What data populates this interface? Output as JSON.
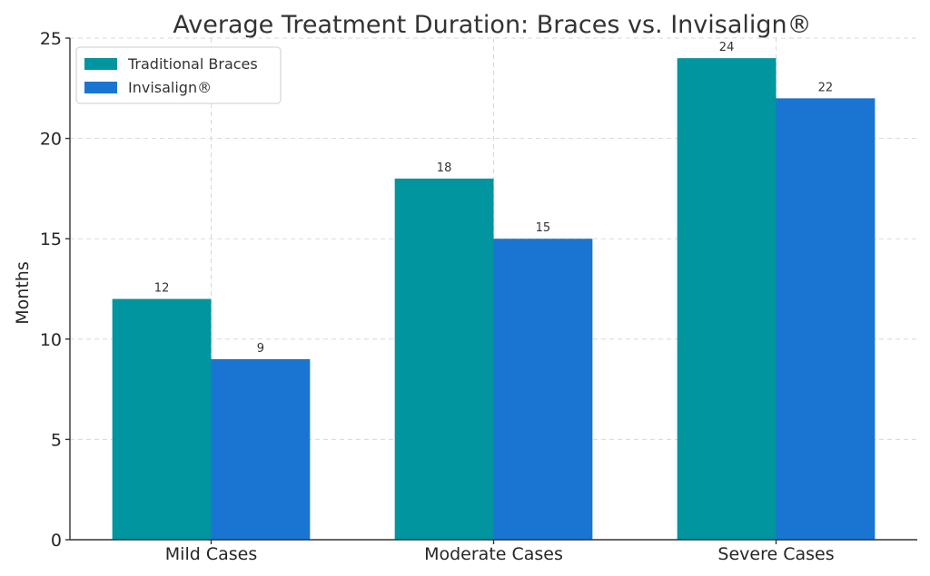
{
  "chart_data": {
    "type": "bar",
    "title": "Average Treatment Duration: Braces vs. Invisalign®",
    "xlabel": "",
    "ylabel": "Months",
    "categories": [
      "Mild Cases",
      "Moderate Cases",
      "Severe Cases"
    ],
    "series": [
      {
        "name": "Traditional Braces",
        "values": [
          12,
          18,
          24
        ],
        "color": "#00959f"
      },
      {
        "name": "Invisalign®",
        "values": [
          9,
          15,
          22
        ],
        "color": "#1a75d2"
      }
    ],
    "ylim": [
      0,
      25
    ],
    "yticks": [
      0,
      5,
      10,
      15,
      20,
      25
    ],
    "grid": true,
    "legend": "top-left"
  }
}
